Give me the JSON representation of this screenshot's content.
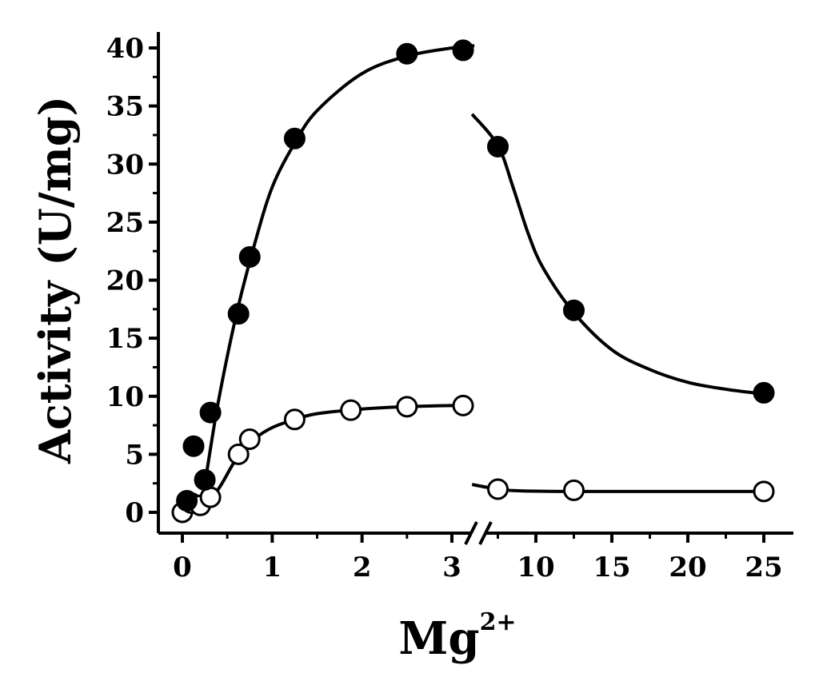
{
  "chart_data": {
    "type": "scatter",
    "xlabel": "Mg",
    "xlabel_superscript": "2+",
    "ylabel": "Activity (U/mg)",
    "ylim": [
      -2,
      42
    ],
    "yticks": [
      "0",
      "5",
      "10",
      "15",
      "20",
      "25",
      "30",
      "35",
      "40"
    ],
    "x_axis_break": true,
    "x_left_segment": {
      "range": [
        -0.2,
        3.2
      ],
      "ticks": [
        "0",
        "1",
        "2",
        "3"
      ]
    },
    "x_right_segment": {
      "range": [
        6.25,
        26.5
      ],
      "ticks": [
        "10",
        "15",
        "20",
        "25"
      ]
    },
    "grid": false,
    "legend": "none",
    "series": [
      {
        "marker": "filled-circle",
        "points_left": [
          [
            0.05,
            1.0
          ],
          [
            0.125,
            5.7
          ],
          [
            0.25,
            2.8
          ],
          [
            0.3125,
            8.6
          ],
          [
            0.625,
            17.1
          ],
          [
            0.75,
            22.0
          ],
          [
            1.25,
            32.2
          ],
          [
            2.5,
            39.5
          ],
          [
            3.125,
            39.8
          ]
        ],
        "points_right": [
          [
            7.5,
            31.5
          ],
          [
            12.5,
            17.4
          ],
          [
            25.0,
            10.3
          ]
        ],
        "curve_left": [
          [
            0.18,
            0.0
          ],
          [
            0.25,
            2.5
          ],
          [
            0.4,
            9.5
          ],
          [
            0.6,
            17.0
          ],
          [
            0.8,
            23.0
          ],
          [
            1.0,
            28.0
          ],
          [
            1.25,
            31.8
          ],
          [
            1.5,
            34.6
          ],
          [
            2.0,
            37.8
          ],
          [
            2.5,
            39.3
          ],
          [
            3.0,
            40.0
          ],
          [
            3.25,
            40.2
          ]
        ],
        "curve_right": [
          [
            5.8,
            34.3
          ],
          [
            7.5,
            31.6
          ],
          [
            8.5,
            28.0
          ],
          [
            9.5,
            24.0
          ],
          [
            10.5,
            21.0
          ],
          [
            12.5,
            17.2
          ],
          [
            15.0,
            14.0
          ],
          [
            17.5,
            12.3
          ],
          [
            20.0,
            11.2
          ],
          [
            22.5,
            10.6
          ],
          [
            25.0,
            10.2
          ]
        ]
      },
      {
        "marker": "open-circle",
        "points_left": [
          [
            0.0,
            0.0
          ],
          [
            0.1,
            0.8
          ],
          [
            0.2,
            0.6
          ],
          [
            0.3125,
            1.3
          ],
          [
            0.625,
            5.0
          ],
          [
            0.75,
            6.3
          ],
          [
            1.25,
            8.0
          ],
          [
            1.875,
            8.8
          ],
          [
            2.5,
            9.1
          ],
          [
            3.125,
            9.2
          ]
        ],
        "points_right": [
          [
            7.5,
            2.0
          ],
          [
            12.5,
            1.9
          ],
          [
            25.0,
            1.8
          ]
        ],
        "curve_left": [
          [
            0.0,
            0.0
          ],
          [
            0.2,
            0.4
          ],
          [
            0.4,
            2.0
          ],
          [
            0.6,
            4.6
          ],
          [
            0.8,
            6.3
          ],
          [
            1.0,
            7.3
          ],
          [
            1.25,
            8.0
          ],
          [
            1.5,
            8.5
          ],
          [
            2.0,
            8.9
          ],
          [
            2.5,
            9.1
          ],
          [
            3.0,
            9.2
          ],
          [
            3.2,
            9.2
          ]
        ],
        "curve_right": [
          [
            5.8,
            2.4
          ],
          [
            7.5,
            2.0
          ],
          [
            9.0,
            1.85
          ],
          [
            12.5,
            1.8
          ],
          [
            18.0,
            1.8
          ],
          [
            25.0,
            1.8
          ]
        ]
      }
    ]
  }
}
